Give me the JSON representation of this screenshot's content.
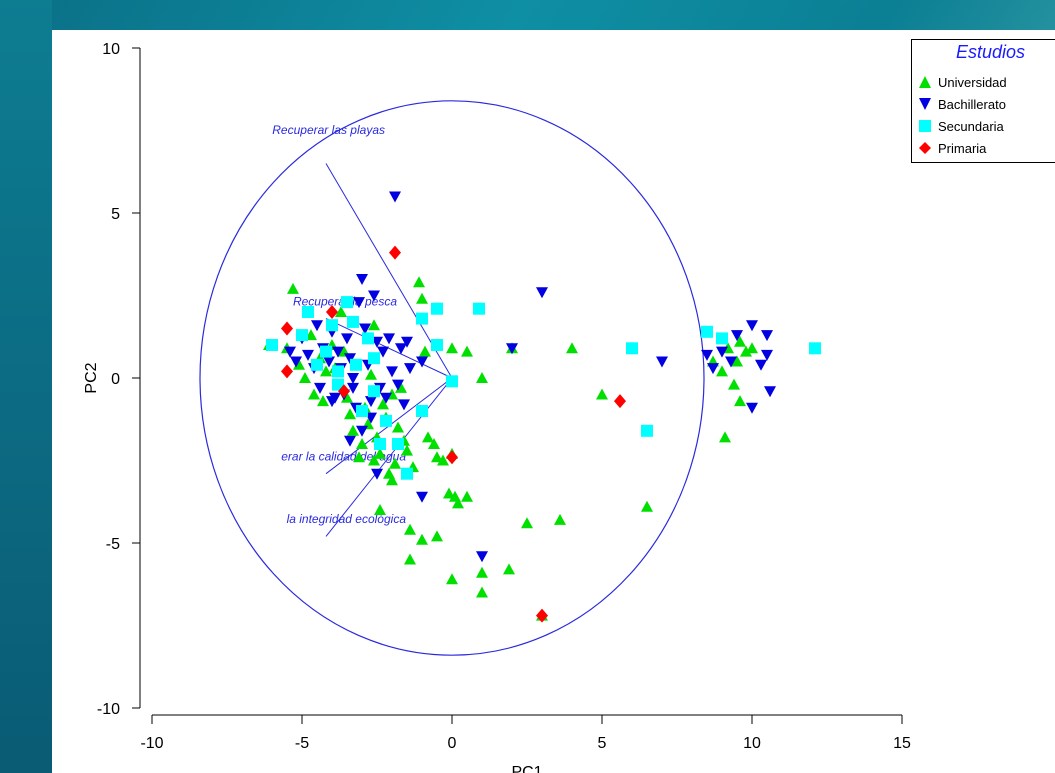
{
  "chart_data": {
    "type": "scatter",
    "title": "",
    "xlabel": "PC1",
    "ylabel": "PC2",
    "xlim": [
      -10,
      15
    ],
    "ylim": [
      -10,
      10
    ],
    "xticks": [
      "-10",
      "-5",
      "0",
      "5",
      "10",
      "15"
    ],
    "yticks": [
      "10",
      "5",
      "0",
      "-5",
      "-10"
    ],
    "legend": {
      "title": "Estudios",
      "placement": "top-right"
    },
    "circle": {
      "cx": 0,
      "cy": 0,
      "r": 8.4
    },
    "loadings": [
      {
        "label": "Recuperar las playas",
        "end": [
          -4.2,
          6.5
        ]
      },
      {
        "label": "Recuperar la pesca",
        "end": [
          -4.2,
          1.8
        ]
      },
      {
        "label": "erar la calidad del agua",
        "end": [
          -4.2,
          -2.9
        ]
      },
      {
        "label": "la integridad ecológica",
        "end": [
          -4.2,
          -4.8
        ]
      }
    ],
    "series": [
      {
        "name": "Universidad",
        "marker": "triangle-up",
        "color": "#00e000",
        "points": [
          [
            -5.5,
            0.9
          ],
          [
            -5.3,
            2.7
          ],
          [
            -5.1,
            0.4
          ],
          [
            -4.9,
            0.0
          ],
          [
            -4.7,
            1.3
          ],
          [
            -4.6,
            -0.5
          ],
          [
            -4.4,
            0.6
          ],
          [
            -4.3,
            -0.7
          ],
          [
            -4.2,
            0.2
          ],
          [
            -4.0,
            1.0
          ],
          [
            -3.8,
            -0.2
          ],
          [
            -3.7,
            2.0
          ],
          [
            -3.6,
            0.8
          ],
          [
            -3.5,
            -0.6
          ],
          [
            -3.4,
            -1.1
          ],
          [
            -3.3,
            -1.6
          ],
          [
            -3.2,
            0.4
          ],
          [
            -3.1,
            -2.4
          ],
          [
            -3.0,
            -2.0
          ],
          [
            -2.9,
            -0.9
          ],
          [
            -2.8,
            -1.4
          ],
          [
            -2.7,
            0.1
          ],
          [
            -2.6,
            -2.5
          ],
          [
            -2.5,
            -1.8
          ],
          [
            -2.4,
            -2.3
          ],
          [
            -2.3,
            -0.8
          ],
          [
            -2.2,
            -1.2
          ],
          [
            -2.1,
            -2.9
          ],
          [
            -2.0,
            -3.1
          ],
          [
            -1.9,
            -2.6
          ],
          [
            -1.8,
            -1.5
          ],
          [
            -1.7,
            -0.3
          ],
          [
            -1.6,
            -1.9
          ],
          [
            -1.5,
            -2.2
          ],
          [
            -1.3,
            -2.7
          ],
          [
            -1.1,
            2.9
          ],
          [
            -1.0,
            2.4
          ],
          [
            -0.9,
            0.8
          ],
          [
            -0.8,
            -1.8
          ],
          [
            -0.6,
            -2.0
          ],
          [
            -0.5,
            -2.4
          ],
          [
            -0.3,
            -2.5
          ],
          [
            0.0,
            -2.3
          ],
          [
            0.0,
            0.9
          ],
          [
            -0.1,
            -3.5
          ],
          [
            0.2,
            -3.8
          ],
          [
            0.5,
            -3.6
          ],
          [
            0.5,
            0.8
          ],
          [
            0.1,
            -3.6
          ],
          [
            1.0,
            0.0
          ],
          [
            -1.4,
            -4.6
          ],
          [
            -1.0,
            -4.9
          ],
          [
            -0.5,
            -4.8
          ],
          [
            -1.4,
            -5.5
          ],
          [
            0.0,
            -6.1
          ],
          [
            1.0,
            -5.9
          ],
          [
            1.0,
            -6.5
          ],
          [
            1.9,
            -5.8
          ],
          [
            -2.4,
            -4.0
          ],
          [
            2.5,
            -4.4
          ],
          [
            3.6,
            -4.3
          ],
          [
            3.0,
            -7.2
          ],
          [
            2.0,
            0.9
          ],
          [
            4.0,
            0.9
          ],
          [
            5.0,
            -0.5
          ],
          [
            6.5,
            -3.9
          ],
          [
            8.7,
            0.5
          ],
          [
            9.0,
            0.2
          ],
          [
            9.2,
            0.9
          ],
          [
            9.4,
            -0.2
          ],
          [
            9.5,
            0.5
          ],
          [
            9.6,
            1.1
          ],
          [
            9.8,
            0.8
          ],
          [
            10.0,
            0.9
          ],
          [
            9.1,
            -1.8
          ],
          [
            9.6,
            -0.7
          ],
          [
            -6.1,
            1.0
          ],
          [
            -2.0,
            -0.5
          ],
          [
            -3.9,
            0.3
          ],
          [
            -2.6,
            1.6
          ]
        ]
      },
      {
        "name": "Bachillerato",
        "marker": "triangle-down",
        "color": "#0000e0",
        "points": [
          [
            -5.4,
            0.8
          ],
          [
            -5.2,
            0.5
          ],
          [
            -5.0,
            1.2
          ],
          [
            -4.8,
            0.7
          ],
          [
            -4.6,
            0.3
          ],
          [
            -4.5,
            1.6
          ],
          [
            -4.4,
            -0.3
          ],
          [
            -4.3,
            0.9
          ],
          [
            -4.1,
            0.5
          ],
          [
            -4.0,
            1.4
          ],
          [
            -3.9,
            -0.6
          ],
          [
            -3.8,
            0.8
          ],
          [
            -3.7,
            0.3
          ],
          [
            -3.6,
            -0.5
          ],
          [
            -3.5,
            1.2
          ],
          [
            -3.4,
            0.6
          ],
          [
            -3.3,
            0.0
          ],
          [
            -3.2,
            -0.9
          ],
          [
            -3.1,
            2.3
          ],
          [
            -3.0,
            3.0
          ],
          [
            -2.9,
            1.5
          ],
          [
            -2.8,
            0.4
          ],
          [
            -2.7,
            -0.7
          ],
          [
            -2.6,
            2.5
          ],
          [
            -2.5,
            1.1
          ],
          [
            -2.4,
            -0.3
          ],
          [
            -2.3,
            0.8
          ],
          [
            -2.2,
            -0.6
          ],
          [
            -2.1,
            1.2
          ],
          [
            -2.0,
            0.2
          ],
          [
            -1.9,
            5.5
          ],
          [
            -1.8,
            -0.2
          ],
          [
            -1.7,
            0.9
          ],
          [
            -1.6,
            -0.8
          ],
          [
            -1.5,
            1.1
          ],
          [
            -1.4,
            0.3
          ],
          [
            -1.0,
            0.5
          ],
          [
            -3.4,
            -1.9
          ],
          [
            -3.0,
            -1.6
          ],
          [
            -2.5,
            -2.9
          ],
          [
            -1.0,
            -3.6
          ],
          [
            1.0,
            -5.4
          ],
          [
            2.0,
            0.9
          ],
          [
            3.0,
            2.6
          ],
          [
            6.0,
            0.9
          ],
          [
            7.0,
            0.5
          ],
          [
            8.5,
            0.7
          ],
          [
            8.7,
            0.3
          ],
          [
            9.0,
            0.8
          ],
          [
            9.3,
            0.5
          ],
          [
            9.5,
            1.3
          ],
          [
            10.0,
            1.6
          ],
          [
            10.3,
            0.4
          ],
          [
            10.5,
            1.3
          ],
          [
            10.5,
            0.7
          ],
          [
            10.6,
            -0.4
          ],
          [
            10.0,
            -0.9
          ],
          [
            -4.0,
            -0.7
          ],
          [
            -3.3,
            -0.3
          ],
          [
            -2.7,
            -1.2
          ]
        ]
      },
      {
        "name": "Secundaria",
        "marker": "square",
        "color": "#00ffff",
        "points": [
          [
            -6.0,
            1.0
          ],
          [
            -5.0,
            1.3
          ],
          [
            -4.8,
            2.0
          ],
          [
            -4.5,
            0.4
          ],
          [
            -4.2,
            0.8
          ],
          [
            -4.0,
            1.6
          ],
          [
            -3.8,
            -0.2
          ],
          [
            -3.5,
            2.3
          ],
          [
            -3.3,
            1.7
          ],
          [
            -3.2,
            0.4
          ],
          [
            -3.0,
            -1.0
          ],
          [
            -2.8,
            1.2
          ],
          [
            -2.6,
            0.6
          ],
          [
            -2.4,
            -2.0
          ],
          [
            -2.2,
            -1.3
          ],
          [
            -1.8,
            -2.0
          ],
          [
            -1.5,
            -2.9
          ],
          [
            -1.0,
            -1.0
          ],
          [
            -1.0,
            1.8
          ],
          [
            -0.5,
            2.1
          ],
          [
            -0.5,
            1.0
          ],
          [
            0.0,
            -0.1
          ],
          [
            0.9,
            2.1
          ],
          [
            6.0,
            0.9
          ],
          [
            6.5,
            -1.6
          ],
          [
            8.5,
            1.4
          ],
          [
            9.0,
            1.2
          ],
          [
            12.1,
            0.9
          ],
          [
            -3.8,
            0.2
          ],
          [
            -2.6,
            -0.4
          ]
        ]
      },
      {
        "name": "Primaria",
        "marker": "diamond",
        "color": "#ff0000",
        "points": [
          [
            -5.5,
            1.5
          ],
          [
            -5.5,
            0.2
          ],
          [
            -4.0,
            2.0
          ],
          [
            -3.6,
            -0.4
          ],
          [
            -1.9,
            3.8
          ],
          [
            0.0,
            -2.4
          ],
          [
            3.0,
            -7.2
          ],
          [
            5.6,
            -0.7
          ]
        ]
      }
    ]
  }
}
